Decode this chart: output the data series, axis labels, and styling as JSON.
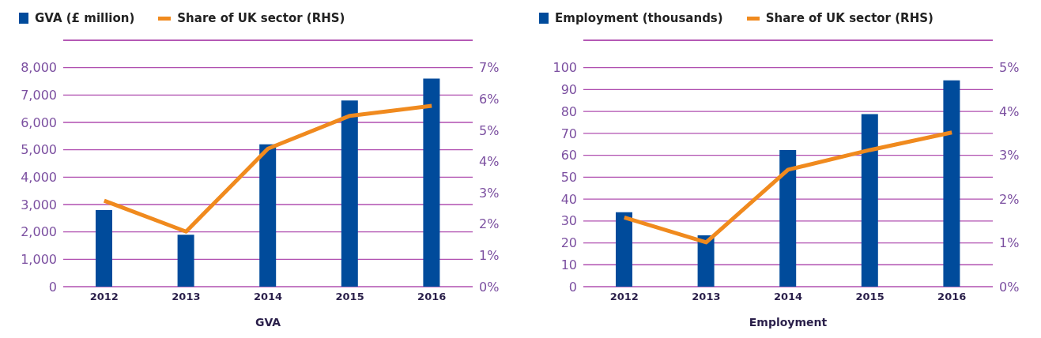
{
  "chart_data": [
    {
      "type": "bar",
      "categories": [
        "2012",
        "2013",
        "2014",
        "2015",
        "2016"
      ],
      "xlabel": "GVA",
      "legend": "top left",
      "grid": "y",
      "series": [
        {
          "name": "GVA (£ million)",
          "color": "#004b9b",
          "values": [
            2800,
            1900,
            5200,
            6800,
            7600
          ]
        },
        {
          "name": "Share of UK sector (RHS)",
          "type": "line",
          "axis": "y2",
          "color": "#f08a1e",
          "values": [
            2.75,
            1.76,
            4.41,
            5.46,
            5.78
          ]
        }
      ],
      "ylim": [
        0,
        9000
      ],
      "yticks": [
        0,
        {
          "value": 1000,
          "label": "1,000"
        },
        {
          "value": 2000,
          "label": "2,000"
        },
        {
          "value": 3000,
          "label": "3,000"
        },
        {
          "value": 4000,
          "label": "4,000"
        },
        {
          "value": 5000,
          "label": "5,000"
        },
        {
          "value": 6000,
          "label": "6,000"
        },
        {
          "value": 7000,
          "label": "7,000"
        },
        {
          "value": 8000,
          "label": "8,000"
        }
      ],
      "y2lim": [
        0,
        7.875
      ],
      "y2ticks": [
        {
          "value": 0,
          "label": "0%"
        },
        {
          "value": 1,
          "label": "1%"
        },
        {
          "value": 2,
          "label": "2%"
        },
        {
          "value": 3,
          "label": "3%"
        },
        {
          "value": 4,
          "label": "4%"
        },
        {
          "value": 5,
          "label": "5%"
        },
        {
          "value": 6,
          "label": "6%"
        },
        {
          "value": 7,
          "label": "7%"
        }
      ]
    },
    {
      "type": "bar",
      "categories": [
        "2012",
        "2013",
        "2014",
        "2015",
        "2016"
      ],
      "xlabel": "Employment",
      "legend": "top left",
      "grid": "y",
      "series": [
        {
          "name": "Employment (thousands)",
          "color": "#004b9b",
          "values": [
            34,
            23.4,
            62.4,
            78.8,
            94.2
          ]
        },
        {
          "name": "Share of UK sector (RHS)",
          "type": "line",
          "axis": "y2",
          "color": "#f08a1e",
          "values": [
            1.58,
            1.01,
            2.67,
            3.12,
            3.52
          ]
        }
      ],
      "ylim": [
        0,
        112.5
      ],
      "yticks": [
        0,
        10,
        20,
        30,
        40,
        50,
        60,
        70,
        80,
        90,
        100
      ],
      "y2lim": [
        0,
        5.625
      ],
      "y2ticks": [
        {
          "value": 0,
          "label": "0%"
        },
        {
          "value": 1,
          "label": "1%"
        },
        {
          "value": 2,
          "label": "2%"
        },
        {
          "value": 3,
          "label": "3%"
        },
        {
          "value": 4,
          "label": "4%"
        },
        {
          "value": 5,
          "label": "5%"
        }
      ]
    }
  ]
}
